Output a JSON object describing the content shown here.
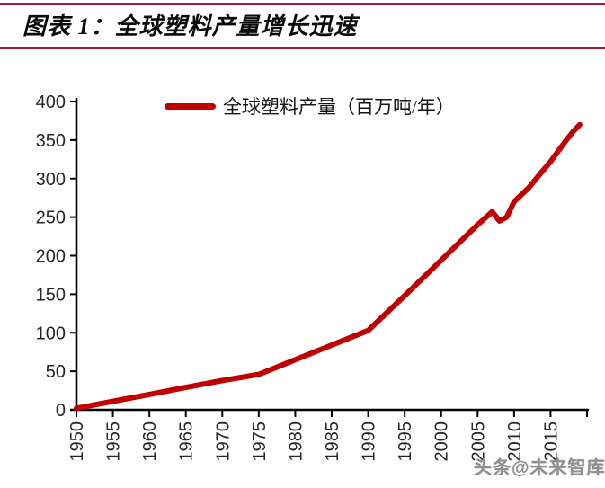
{
  "header": {
    "title": "图表 1：全球塑料产量增长迅速"
  },
  "legend": {
    "label": "全球塑料产量（百万吨/年）"
  },
  "watermark": {
    "text": "头条@未来智库"
  },
  "colors": {
    "rule": "#9B1F3C",
    "series_line": "#C00000",
    "axis": "#000000",
    "tick_label": "#262626",
    "watermark": "#8F8F8F"
  },
  "chart_data": {
    "type": "line",
    "title": "图表 1：全球塑料产量增长迅速",
    "xlabel": "",
    "ylabel": "",
    "legend": [
      "全球塑料产量（百万吨/年）"
    ],
    "legend_position": "top-center",
    "grid": false,
    "xlim": [
      1950,
      2020
    ],
    "ylim": [
      0,
      400
    ],
    "x_ticks": [
      1950,
      1955,
      1960,
      1965,
      1970,
      1975,
      1980,
      1985,
      1990,
      1995,
      2000,
      2005,
      2010,
      2015
    ],
    "y_ticks": [
      0,
      50,
      100,
      150,
      200,
      250,
      300,
      350,
      400
    ],
    "series": [
      {
        "name": "全球塑料产量（百万吨/年）",
        "x": [
          1950,
          1955,
          1960,
          1965,
          1970,
          1975,
          1980,
          1985,
          1990,
          1995,
          2000,
          2005,
          2007,
          2008,
          2009,
          2010,
          2012,
          2014,
          2015,
          2017,
          2018,
          2019
        ],
        "values": [
          2,
          11,
          20,
          29,
          38,
          46,
          65,
          84,
          103,
          148,
          194,
          240,
          257,
          245,
          250,
          270,
          288,
          311,
          322,
          348,
          360,
          370
        ]
      }
    ]
  }
}
